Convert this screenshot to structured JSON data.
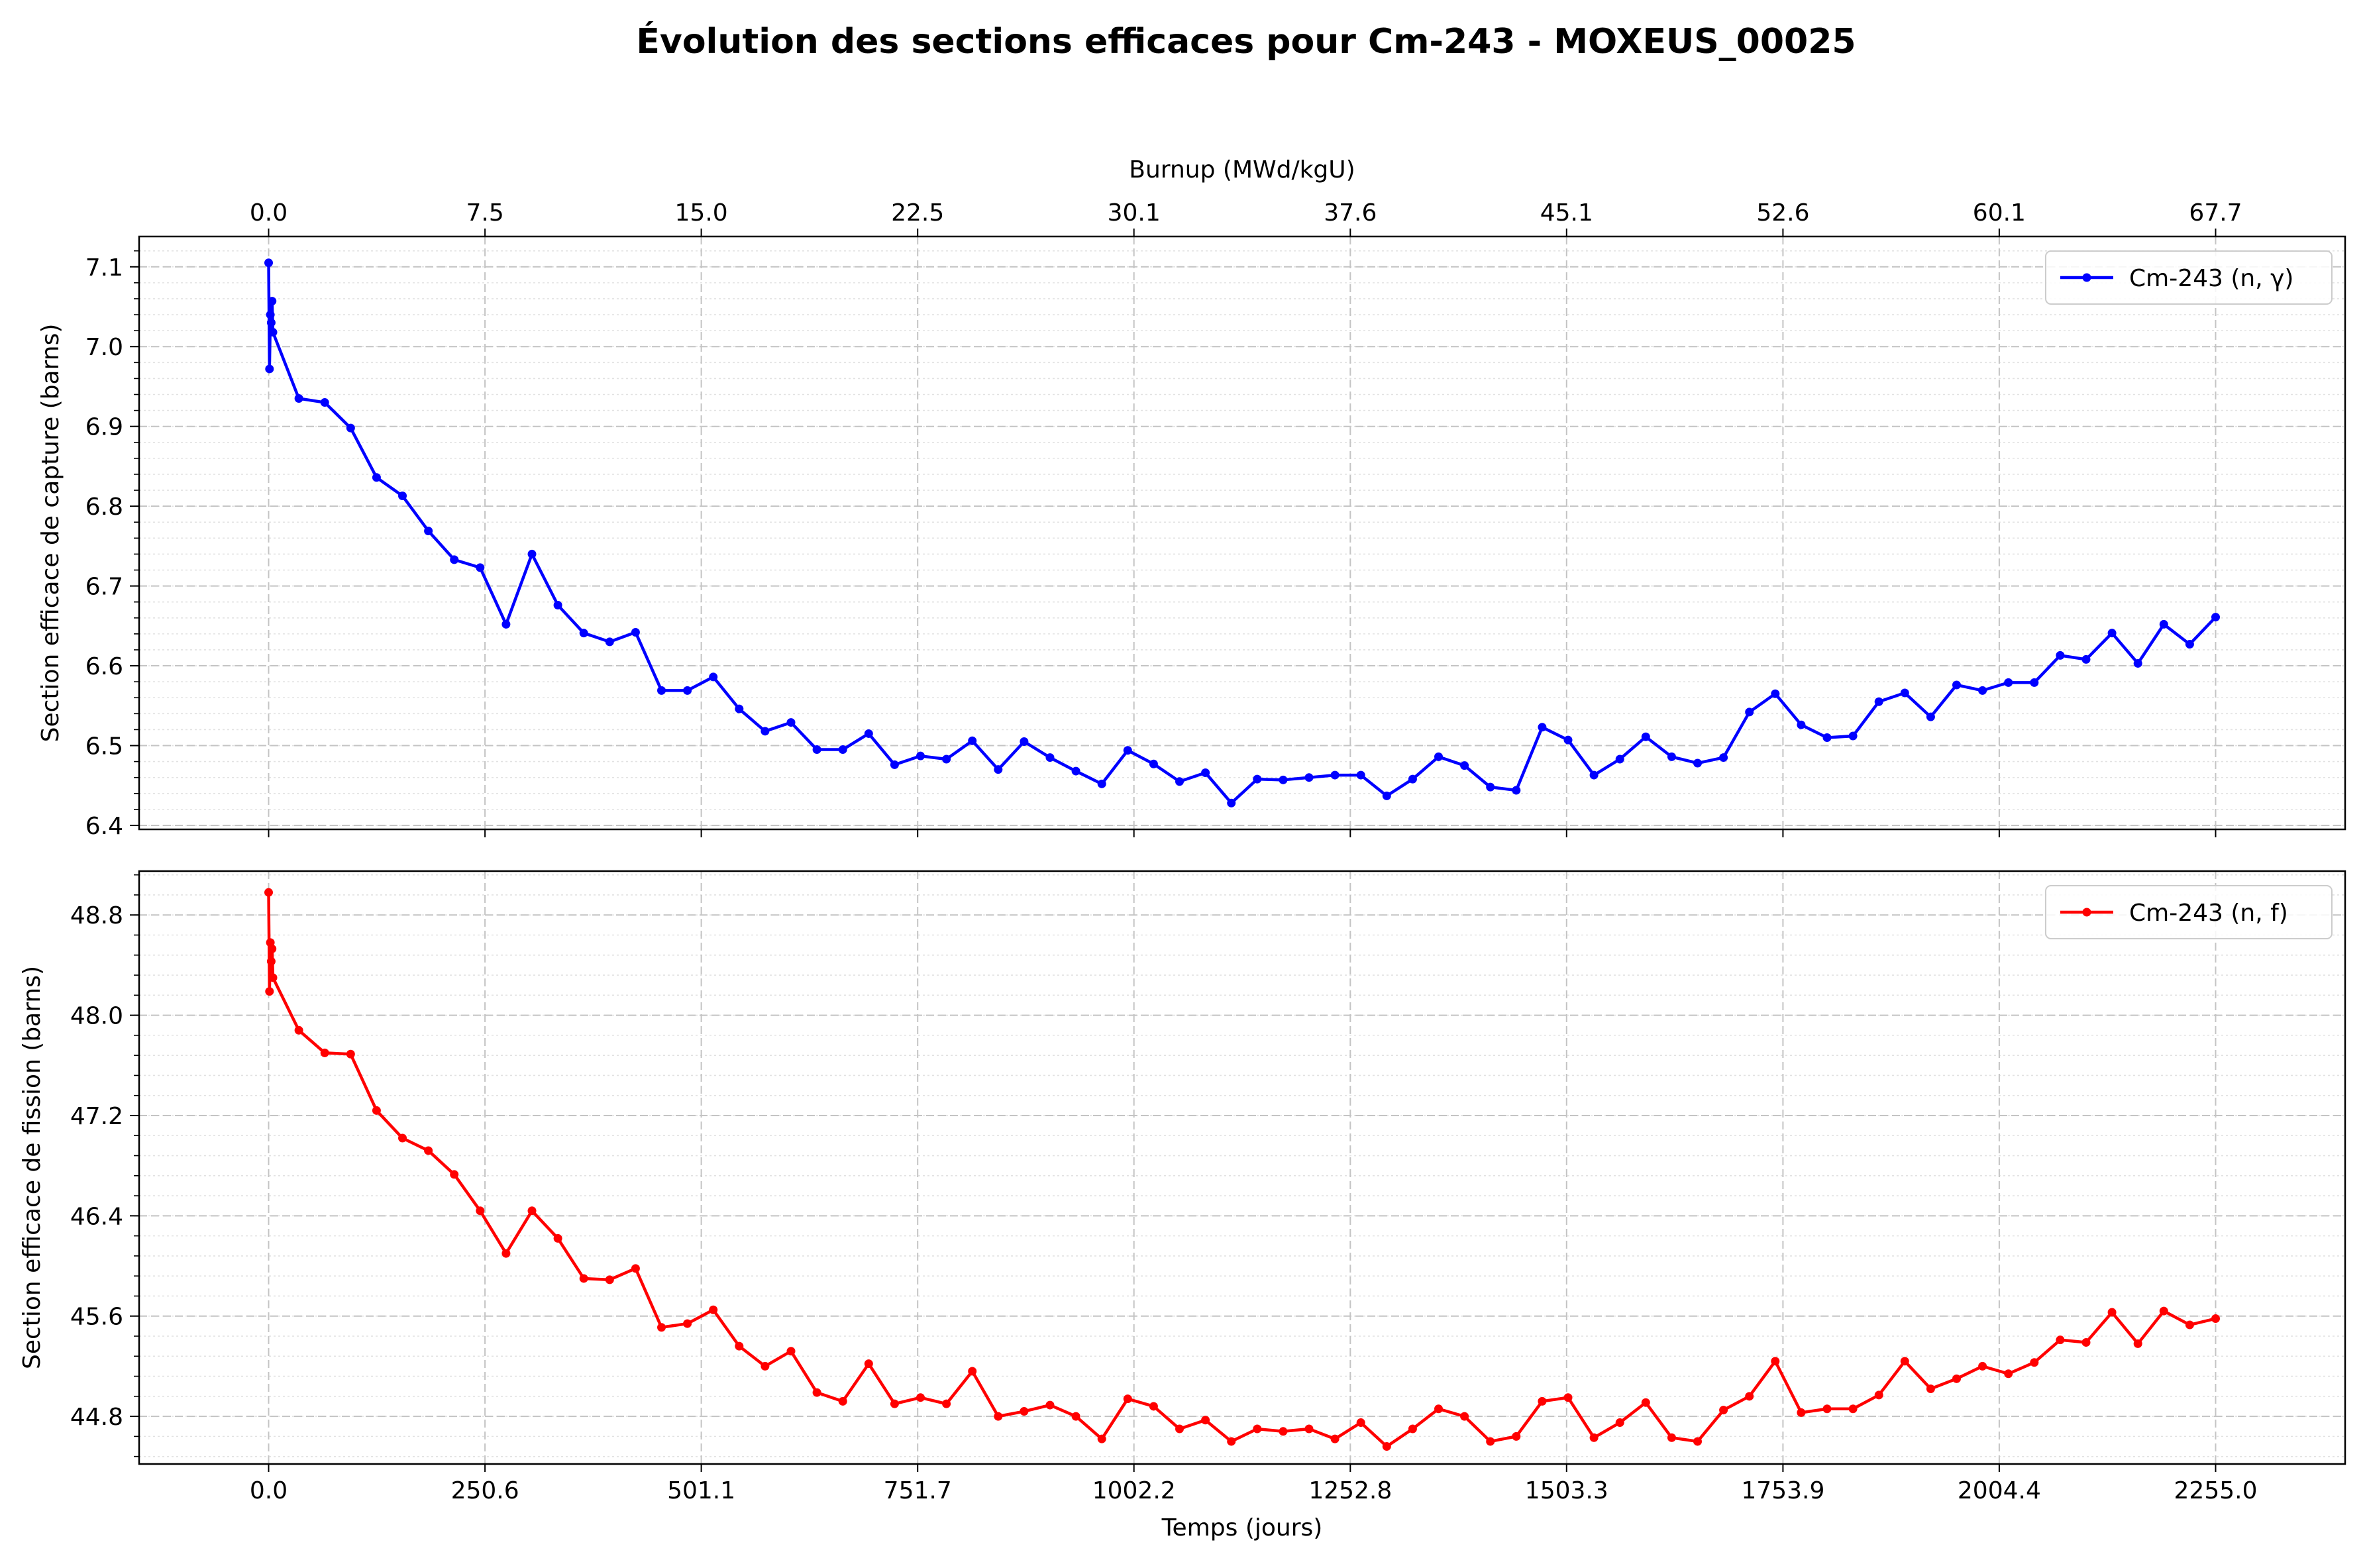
{
  "title": "Évolution des sections efficaces pour Cm-243 - MOXEUS_00025",
  "chart_data": [
    {
      "type": "line",
      "ylabel": "Section efficace de capture (barns)",
      "top_axis_label": "Burnup (MWd/kgU)",
      "top_tick_labels": [
        "0.0",
        "7.5",
        "15.0",
        "22.5",
        "30.1",
        "37.6",
        "45.1",
        "52.6",
        "60.1",
        "67.7"
      ],
      "y_tick_labels": [
        "6.4",
        "6.5",
        "6.6",
        "6.7",
        "6.8",
        "6.9",
        "7.0",
        "7.1"
      ],
      "ylim": [
        6.395,
        7.138
      ],
      "legend": "upper right",
      "grid": true,
      "color": "#0000ff",
      "series": [
        {
          "name": "Cm-243 (n, γ)",
          "x": [
            0,
            1,
            2,
            3,
            4,
            5,
            35,
            65,
            95,
            125,
            155,
            185,
            215,
            245,
            275,
            305,
            335,
            365,
            395,
            425,
            455,
            485,
            515,
            545,
            575,
            605,
            635,
            665,
            695,
            725,
            755,
            785,
            815,
            845,
            875,
            905,
            935,
            965,
            995,
            1025,
            1055,
            1085,
            1115,
            1145,
            1175,
            1205,
            1235,
            1265,
            1295,
            1325,
            1355,
            1385,
            1415,
            1445,
            1475,
            1505,
            1535,
            1565,
            1595,
            1625,
            1655,
            1685,
            1715,
            1745,
            1775,
            1805,
            1835,
            1865,
            1895,
            1925,
            1955,
            1985,
            2015,
            2045,
            2075,
            2105,
            2135,
            2165,
            2195,
            2225,
            2255
          ],
          "values": [
            7.105,
            6.972,
            7.04,
            7.03,
            7.057,
            7.018,
            6.935,
            6.93,
            6.898,
            6.836,
            6.813,
            6.769,
            6.733,
            6.723,
            6.652,
            6.74,
            6.676,
            6.641,
            6.63,
            6.642,
            6.569,
            6.569,
            6.586,
            6.546,
            6.518,
            6.529,
            6.495,
            6.495,
            6.515,
            6.476,
            6.487,
            6.483,
            6.506,
            6.47,
            6.505,
            6.485,
            6.468,
            6.452,
            6.494,
            6.477,
            6.455,
            6.466,
            6.428,
            6.458,
            6.457,
            6.46,
            6.463,
            6.463,
            6.437,
            6.458,
            6.486,
            6.475,
            6.448,
            6.444,
            6.523,
            6.507,
            6.463,
            6.483,
            6.511,
            6.486,
            6.478,
            6.485,
            6.542,
            6.565,
            6.526,
            6.51,
            6.512,
            6.555,
            6.566,
            6.536,
            6.576,
            6.569,
            6.579,
            6.579,
            6.613,
            6.608,
            6.641,
            6.603,
            6.652,
            6.627,
            6.661
          ]
        }
      ]
    },
    {
      "type": "line",
      "xlabel": "Temps (jours)",
      "ylabel": "Section efficace de fission (barns)",
      "x_tick_labels": [
        "0.0",
        "250.6",
        "501.1",
        "751.7",
        "1002.2",
        "1252.8",
        "1503.3",
        "1753.9",
        "2004.4",
        "2255.0"
      ],
      "y_tick_labels": [
        "44.8",
        "45.6",
        "46.4",
        "47.2",
        "48.0",
        "48.8"
      ],
      "ylim": [
        44.42,
        49.15
      ],
      "legend": "upper right",
      "grid": true,
      "color": "#ff0000",
      "series": [
        {
          "name": "Cm-243 (n, f)",
          "x": [
            0,
            1,
            2,
            3,
            4,
            5,
            35,
            65,
            95,
            125,
            155,
            185,
            215,
            245,
            275,
            305,
            335,
            365,
            395,
            425,
            455,
            485,
            515,
            545,
            575,
            605,
            635,
            665,
            695,
            725,
            755,
            785,
            815,
            845,
            875,
            905,
            935,
            965,
            995,
            1025,
            1055,
            1085,
            1115,
            1145,
            1175,
            1205,
            1235,
            1265,
            1295,
            1325,
            1355,
            1385,
            1415,
            1445,
            1475,
            1505,
            1535,
            1565,
            1595,
            1625,
            1655,
            1685,
            1715,
            1745,
            1775,
            1805,
            1835,
            1865,
            1895,
            1925,
            1955,
            1985,
            2015,
            2045,
            2075,
            2105,
            2135,
            2165,
            2195,
            2225,
            2255
          ],
          "values": [
            48.98,
            48.19,
            48.58,
            48.43,
            48.53,
            48.3,
            47.88,
            47.7,
            47.69,
            47.24,
            47.02,
            46.92,
            46.73,
            46.44,
            46.1,
            46.44,
            46.22,
            45.9,
            45.89,
            45.98,
            45.51,
            45.54,
            45.65,
            45.36,
            45.2,
            45.32,
            44.99,
            44.92,
            45.22,
            44.9,
            44.95,
            44.9,
            45.16,
            44.8,
            44.84,
            44.89,
            44.8,
            44.62,
            44.94,
            44.88,
            44.7,
            44.77,
            44.6,
            44.7,
            44.68,
            44.7,
            44.62,
            44.75,
            44.56,
            44.7,
            44.86,
            44.8,
            44.6,
            44.64,
            44.92,
            44.95,
            44.63,
            44.75,
            44.91,
            44.63,
            44.6,
            44.85,
            44.96,
            45.24,
            44.83,
            44.86,
            44.86,
            44.97,
            45.24,
            45.02,
            45.1,
            45.2,
            45.14,
            45.23,
            45.41,
            45.39,
            45.63,
            45.38,
            45.64,
            45.53,
            45.58
          ]
        }
      ]
    }
  ]
}
